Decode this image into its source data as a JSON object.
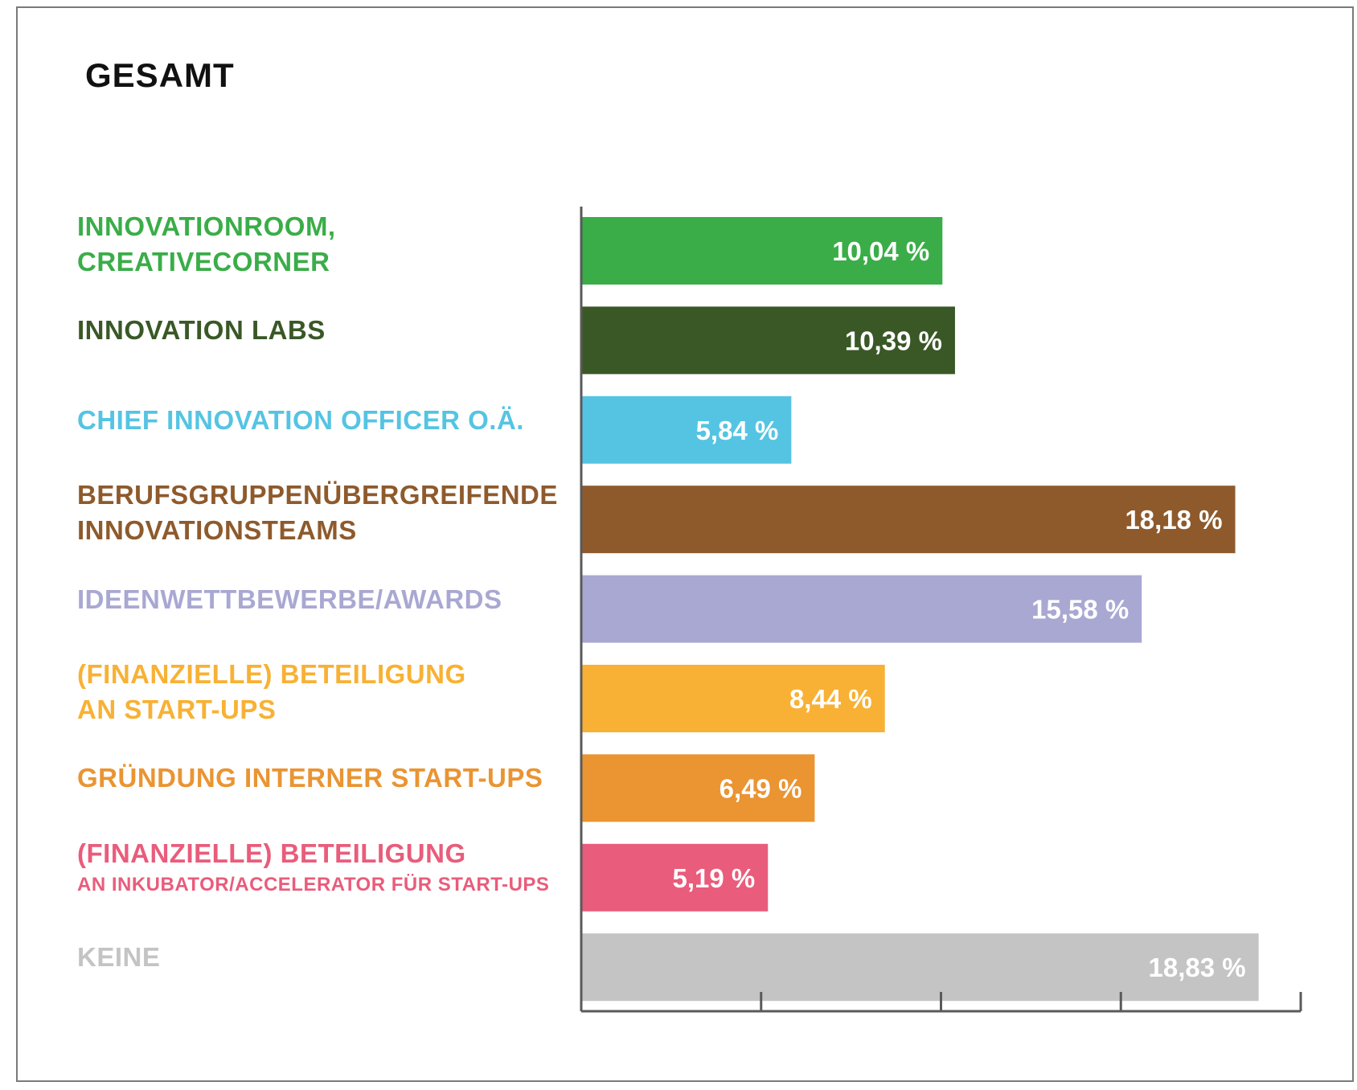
{
  "chart_data": {
    "type": "bar",
    "orientation": "horizontal",
    "title": "GESAMT",
    "xlim": [
      0,
      20
    ],
    "grid": false,
    "categories": [
      [
        "INNOVATIONROOM,",
        "CREATIVECORNER"
      ],
      [
        "INNOVATION LABS"
      ],
      [
        "CHIEF INNOVATION OFFICER O.Ä."
      ],
      [
        "BERUFSGRUPPENÜBERGREIFENDE",
        "INNOVATIONSTEAMS"
      ],
      [
        "IDEENWETTBEWERBE/AWARDS"
      ],
      [
        "(FINANZIELLE) BETEILIGUNG",
        "AN START-UPS"
      ],
      [
        "GRÜNDUNG INTERNER START-UPS"
      ],
      [
        "(FINANZIELLE) BETEILIGUNG",
        "AN INKUBATOR/ACCELERATOR FÜR START-UPS"
      ],
      [
        "KEINE"
      ]
    ],
    "values": [
      10.04,
      10.39,
      5.84,
      18.18,
      15.58,
      8.44,
      6.49,
      5.19,
      18.83
    ],
    "value_labels": [
      "10,04 %",
      "10,39 %",
      "5,84 %",
      "18,18 %",
      "15,58 %",
      "8,44 %",
      "6,49 %",
      "5,19 %",
      "18,83 %"
    ],
    "colors": [
      "#3aad48",
      "#395826",
      "#55c4e3",
      "#8e5a2c",
      "#a9a8d2",
      "#f8b134",
      "#ea9432",
      "#e95c7b",
      "#c4c4c4"
    ]
  }
}
